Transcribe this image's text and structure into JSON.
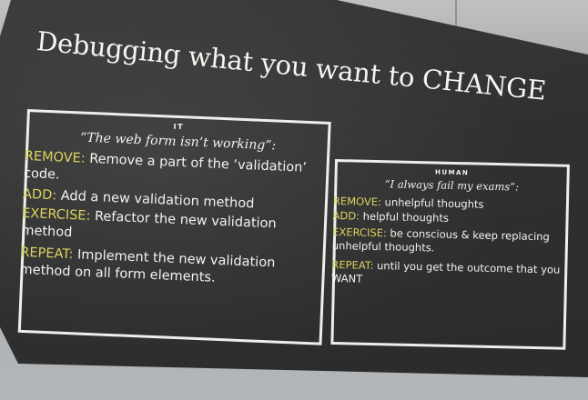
{
  "slide": {
    "title": "Debugging what you want to CHANGE",
    "left_panel": {
      "tag": "IT",
      "quote": "“The web form isn’t working”:",
      "items": [
        {
          "keyword": "REMOVE:",
          "text_line1": " Remove a part of the ‘validation’",
          "text_line2": "code."
        },
        {
          "keyword": "ADD:",
          "text_line1": " Add a new validation method",
          "text_line2": ""
        },
        {
          "keyword": "EXERCISE:",
          "text_line1": " Refactor the new validation",
          "text_line2": "method"
        },
        {
          "keyword": "REPEAT:",
          "text_line1": " Implement the new validation",
          "text_line2": "method on all form elements."
        }
      ]
    },
    "right_panel": {
      "tag": "HUMAN",
      "quote": "“I always fail my exams”:",
      "items": [
        {
          "keyword": "REMOVE:",
          "text_line1": "  unhelpful thoughts",
          "text_line2": ""
        },
        {
          "keyword": "ADD:",
          "text_line1": "  helpful thoughts",
          "text_line2": ""
        },
        {
          "keyword": "EXERCISE:",
          "text_line1": "  be conscious & keep replacing",
          "text_line2": "unhelpful thoughts."
        },
        {
          "keyword": "REPEAT:",
          "text_line1": " until you get the outcome that you",
          "text_line2": "WANT"
        }
      ]
    },
    "colors": {
      "keyword": "#d9d45e",
      "text": "#f2f2ee",
      "screen": "#2f2f2f"
    }
  }
}
